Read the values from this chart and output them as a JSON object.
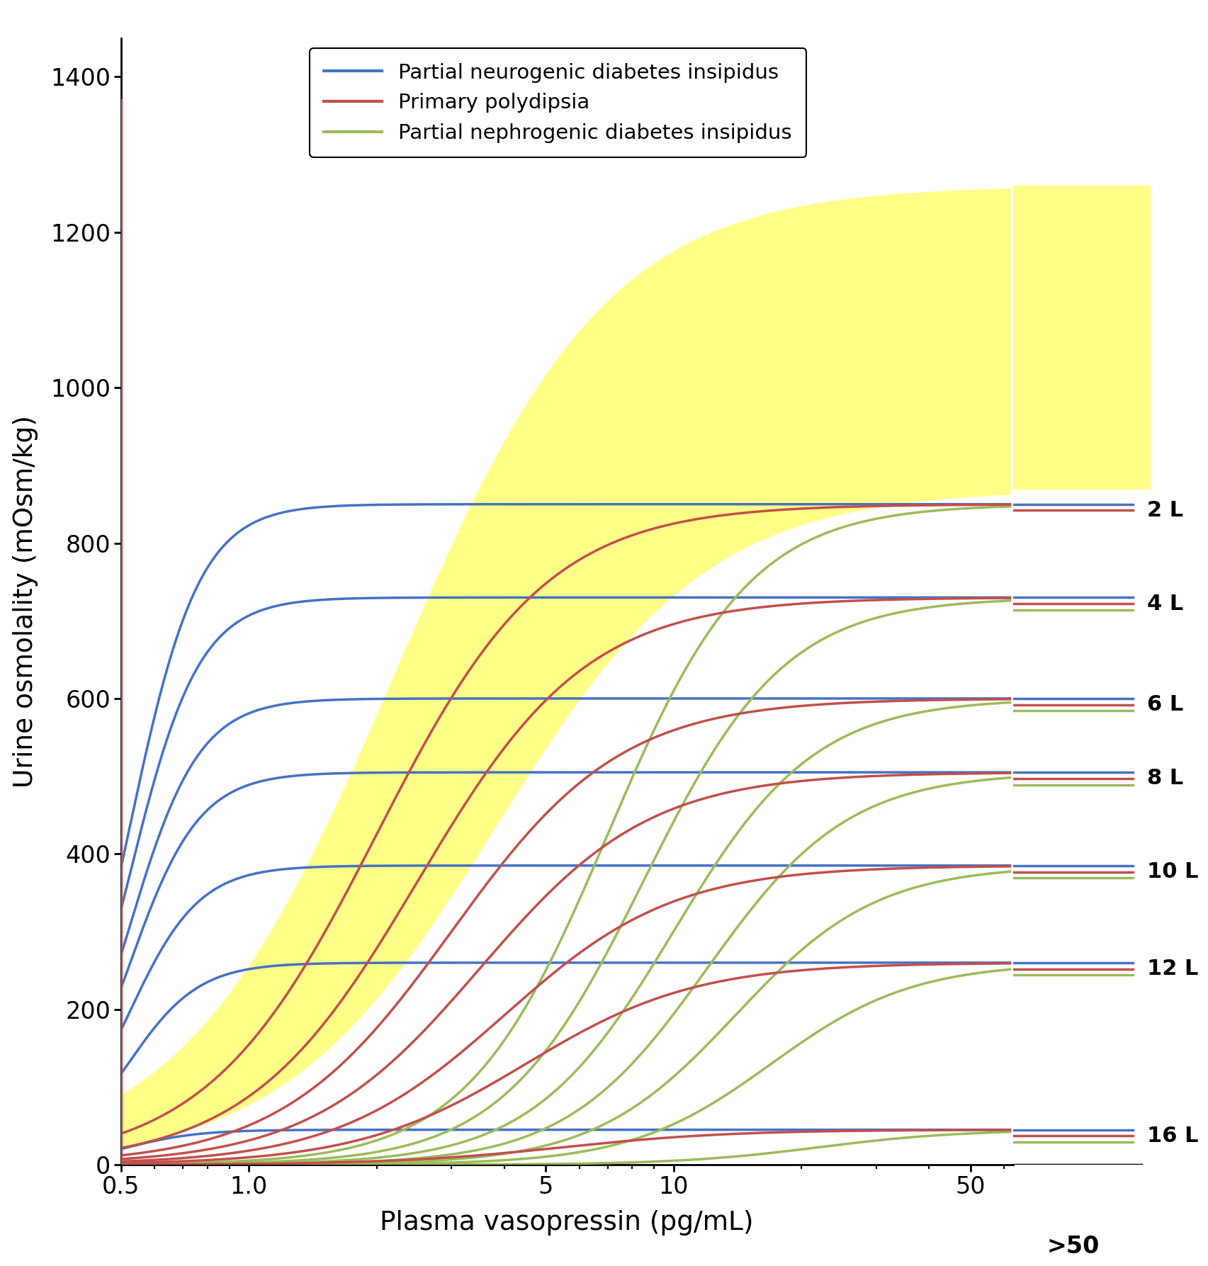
{
  "legend_entries": [
    {
      "label": "Partial neurogenic diabetes insipidus",
      "color": "#4472C4"
    },
    {
      "label": "Primary polydipsia",
      "color": "#C0504D"
    },
    {
      "label": "Partial nephrogenic diabetes insipidus",
      "color": "#9BBB59"
    }
  ],
  "plateau_levels": [
    850,
    730,
    600,
    505,
    385,
    260,
    45
  ],
  "liter_labels": [
    "2 L",
    "4 L",
    "6 L",
    "8 L",
    "10 L",
    "12 L",
    "16 L"
  ],
  "blue_color": "#4472C4",
  "red_color": "#C0504D",
  "green_color": "#9BBB59",
  "yellow_fill": "#FFFF88",
  "background": "#FFFFFF",
  "ylabel": "Urine osmolality (mOsm/kg)",
  "xlabel": "Plasma vasopressin (pg/mL)",
  "ylim": [
    0,
    1450
  ],
  "yticks": [
    0,
    200,
    400,
    600,
    800,
    1000,
    1200,
    1400
  ],
  "linewidth": 2.5,
  "blue_mids": [
    0.52,
    0.52,
    0.52,
    0.52,
    0.52,
    0.52,
    0.52
  ],
  "blue_steep": [
    12,
    12,
    12,
    12,
    12,
    12,
    12
  ],
  "red_mids": [
    2.0,
    2.5,
    3.0,
    3.5,
    4.0,
    4.5,
    5.5
  ],
  "red_steep": [
    5,
    5,
    5,
    5,
    5,
    5,
    5
  ],
  "green_mids": [
    7.0,
    8.5,
    10.0,
    12.0,
    14.0,
    17.0,
    22.0
  ],
  "green_steep": [
    6,
    6,
    6,
    6,
    6,
    6,
    6
  ],
  "yellow_upper_mid": 2.2,
  "yellow_upper_steep": 4.0,
  "yellow_upper_plateau": 1260,
  "yellow_lower_mid": 3.8,
  "yellow_lower_steep": 4.0,
  "yellow_lower_plateau": 870
}
